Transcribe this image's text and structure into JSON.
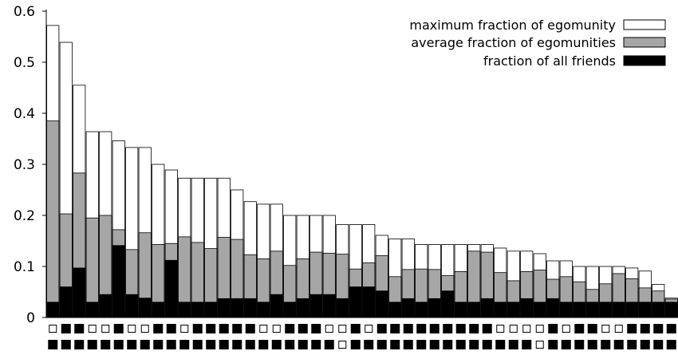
{
  "chart_data": {
    "type": "bar",
    "stacked_overlay": true,
    "title": "",
    "xlabel": "",
    "ylabel": "",
    "ylim": [
      0,
      0.6
    ],
    "yticks": [
      "0",
      "0.1",
      "0.2",
      "0.3",
      "0.4",
      "0.5",
      "0.6"
    ],
    "ytick_values": [
      0,
      0.1,
      0.2,
      0.3,
      0.4,
      0.5,
      0.6
    ],
    "grid": false,
    "legend_placement": "top-right",
    "series": [
      {
        "name": "maximum fraction of egomunity",
        "color": "#ffffff",
        "values": [
          0.572,
          0.539,
          0.455,
          0.364,
          0.364,
          0.346,
          0.333,
          0.333,
          0.3,
          0.289,
          0.273,
          0.273,
          0.273,
          0.273,
          0.25,
          0.227,
          0.222,
          0.222,
          0.2,
          0.2,
          0.2,
          0.2,
          0.182,
          0.182,
          0.182,
          0.161,
          0.154,
          0.154,
          0.143,
          0.143,
          0.143,
          0.143,
          0.143,
          0.143,
          0.136,
          0.13,
          0.13,
          0.125,
          0.111,
          0.111,
          0.1,
          0.1,
          0.1,
          0.1,
          0.097,
          0.091,
          0.065,
          0.038
        ]
      },
      {
        "name": "average fraction of egomunities",
        "color": "#a6a6a6",
        "values": [
          0.385,
          0.203,
          0.283,
          0.195,
          0.2,
          0.172,
          0.133,
          0.166,
          0.143,
          0.145,
          0.158,
          0.147,
          0.135,
          0.157,
          0.153,
          0.123,
          0.115,
          0.13,
          0.102,
          0.115,
          0.128,
          0.126,
          0.124,
          0.095,
          0.107,
          0.121,
          0.08,
          0.094,
          0.095,
          0.094,
          0.082,
          0.09,
          0.13,
          0.128,
          0.088,
          0.072,
          0.09,
          0.093,
          0.075,
          0.08,
          0.07,
          0.055,
          0.066,
          0.086,
          0.076,
          0.058,
          0.052,
          0.036
        ]
      },
      {
        "name": "fraction of all friends",
        "color": "#000000",
        "values": [
          0.03,
          0.06,
          0.097,
          0.03,
          0.045,
          0.141,
          0.045,
          0.038,
          0.03,
          0.112,
          0.03,
          0.03,
          0.03,
          0.037,
          0.037,
          0.037,
          0.03,
          0.045,
          0.03,
          0.037,
          0.045,
          0.045,
          0.037,
          0.06,
          0.06,
          0.052,
          0.03,
          0.037,
          0.03,
          0.037,
          0.052,
          0.03,
          0.03,
          0.037,
          0.03,
          0.03,
          0.037,
          0.03,
          0.037,
          0.03,
          0.03,
          0.03,
          0.03,
          0.03,
          0.03,
          0.03,
          0.03,
          0.03
        ]
      }
    ],
    "marker_rows": [
      [
        0,
        1,
        1,
        0,
        0,
        1,
        0,
        0,
        1,
        1,
        0,
        1,
        1,
        1,
        1,
        1,
        0,
        0,
        1,
        1,
        1,
        0,
        0,
        1,
        0,
        1,
        1,
        1,
        1,
        1,
        1,
        1,
        1,
        1,
        0,
        0,
        0,
        0,
        1,
        0,
        1,
        1,
        0,
        0,
        1,
        1,
        1,
        1
      ],
      [
        1,
        1,
        1,
        1,
        1,
        1,
        1,
        1,
        1,
        1,
        1,
        1,
        1,
        1,
        1,
        1,
        1,
        1,
        1,
        1,
        1,
        1,
        0,
        1,
        1,
        1,
        1,
        1,
        1,
        1,
        1,
        1,
        1,
        1,
        1,
        1,
        1,
        0,
        1,
        1,
        1,
        1,
        1,
        1,
        1,
        1,
        1,
        1
      ]
    ]
  }
}
